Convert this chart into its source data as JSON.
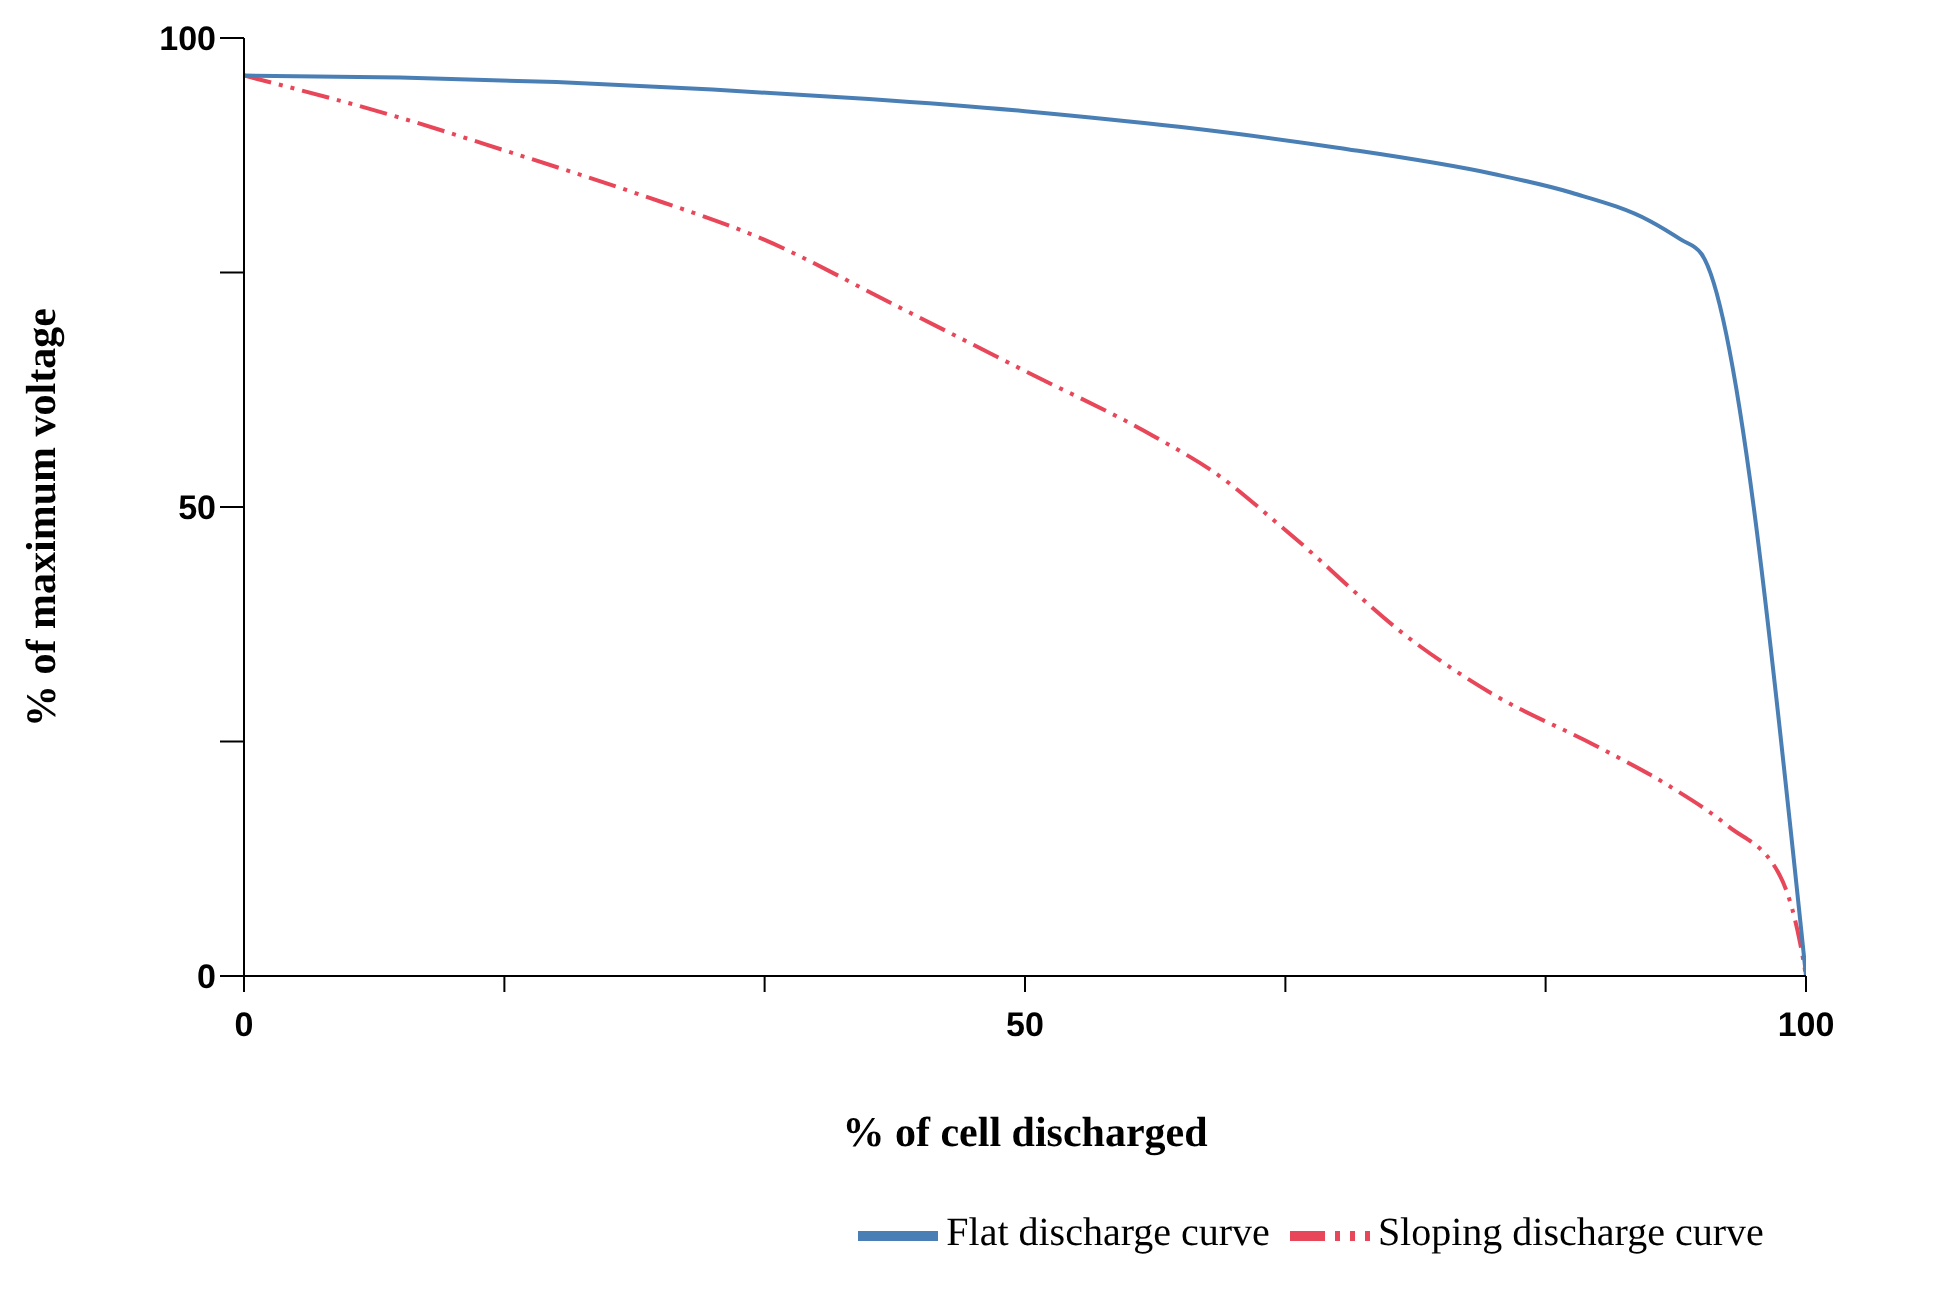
{
  "chart_data": {
    "type": "line",
    "xlabel": "% of cell discharged",
    "ylabel": "% of maximum voltage",
    "xlim": [
      0,
      100
    ],
    "ylim": [
      0,
      100
    ],
    "xticks": [
      0,
      {
        "value": 16.67,
        "label": null
      },
      {
        "value": 33.33,
        "label": null
      },
      50,
      {
        "value": 66.67,
        "label": null
      },
      {
        "value": 83.33,
        "label": null
      },
      100
    ],
    "yticks": [
      0,
      {
        "value": 25,
        "label": null
      },
      50,
      {
        "value": 75,
        "label": null
      },
      100
    ],
    "grid": false,
    "legend": "bottom",
    "marker": "none",
    "series": [
      {
        "name": "Sloping discharge curve",
        "color": "#e8475a",
        "line_style": "dashed",
        "x": [
          0,
          10,
          16.7,
          25,
          33.3,
          41.7,
          50,
          58.3,
          62.2,
          66.7,
          75,
          80,
          86.6,
          91.3,
          95,
          98.3,
          99.6,
          100
        ],
        "values": [
          96,
          91.5,
          88,
          83.5,
          78.5,
          71.5,
          64.5,
          57.5,
          53.6,
          47.5,
          35.5,
          30,
          24.5,
          20.2,
          16,
          10.8,
          3.7,
          0
        ]
      },
      {
        "name": "Flat discharge curve",
        "color": "#4a7fb5",
        "line_style": "solid",
        "x": [
          0,
          10,
          20,
          30,
          40,
          50,
          60,
          70,
          80,
          85,
          90,
          92,
          93.3,
          100
        ],
        "values": [
          96,
          95.8,
          95.3,
          94.5,
          93.5,
          92.2,
          90.5,
          88.3,
          85.5,
          83.5,
          80.5,
          78.5,
          77,
          0
        ]
      }
    ]
  }
}
